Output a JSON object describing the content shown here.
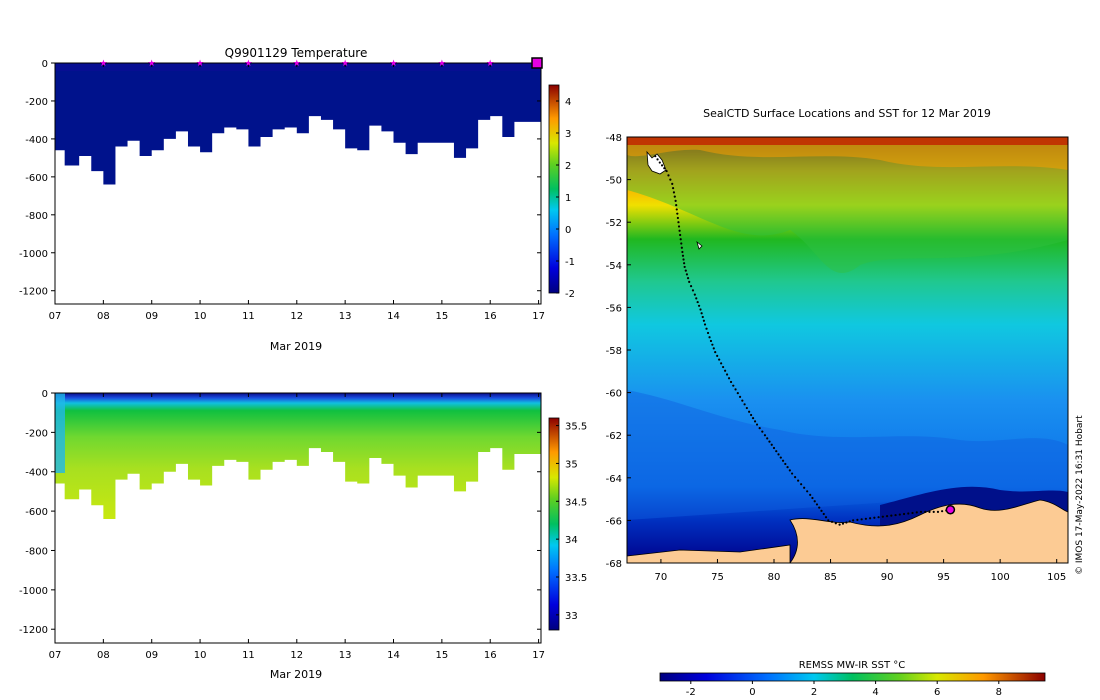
{
  "chart_data": [
    {
      "type": "heatmap",
      "title": "Q9901129  Temperature",
      "xlabel": "Mar 2019",
      "ylabel": "",
      "x_ticks": [
        "07",
        "08",
        "09",
        "10",
        "11",
        "12",
        "13",
        "14",
        "15",
        "16",
        "17"
      ],
      "xlim": [
        7,
        17.05
      ],
      "y_ticks": [
        0,
        -200,
        -400,
        -600,
        -800,
        -1000,
        -1200
      ],
      "ylim": [
        -1270,
        0
      ],
      "colorbar": {
        "ticks": [
          4,
          3,
          2,
          1,
          0,
          -1,
          -2
        ],
        "range": [
          -2,
          4.5
        ]
      },
      "surface_markers_days": [
        8,
        9,
        10,
        11,
        12,
        13,
        14,
        15,
        16
      ],
      "profile_depth_limits": [
        [
          7.0,
          -370
        ],
        [
          7.2,
          -460
        ],
        [
          7.5,
          -540
        ],
        [
          7.75,
          -490
        ],
        [
          8.0,
          -570
        ],
        [
          8.25,
          -640
        ],
        [
          8.5,
          -440
        ],
        [
          8.75,
          -410
        ],
        [
          9.0,
          -490
        ],
        [
          9.25,
          -460
        ],
        [
          9.5,
          -400
        ],
        [
          9.75,
          -360
        ],
        [
          10.0,
          -440
        ],
        [
          10.25,
          -470
        ],
        [
          10.5,
          -370
        ],
        [
          10.75,
          -340
        ],
        [
          11.0,
          -350
        ],
        [
          11.25,
          -440
        ],
        [
          11.5,
          -390
        ],
        [
          11.75,
          -350
        ],
        [
          12.0,
          -340
        ],
        [
          12.25,
          -370
        ],
        [
          12.5,
          -280
        ],
        [
          12.75,
          -300
        ],
        [
          13.0,
          -350
        ],
        [
          13.25,
          -450
        ],
        [
          13.5,
          -460
        ],
        [
          13.75,
          -330
        ],
        [
          14.0,
          -360
        ],
        [
          14.25,
          -420
        ],
        [
          14.5,
          -480
        ],
        [
          14.75,
          -420
        ],
        [
          15.0,
          -420
        ],
        [
          15.25,
          -420
        ],
        [
          15.5,
          -500
        ],
        [
          15.75,
          -450
        ],
        [
          16.0,
          -300
        ],
        [
          16.25,
          -280
        ],
        [
          16.5,
          -390
        ],
        [
          16.75,
          -310
        ],
        [
          17.05,
          -310
        ]
      ]
    },
    {
      "type": "heatmap",
      "title": "",
      "xlabel": "Mar 2019",
      "ylabel": "",
      "x_ticks": [
        "07",
        "08",
        "09",
        "10",
        "11",
        "12",
        "13",
        "14",
        "15",
        "16",
        "17"
      ],
      "xlim": [
        7,
        17.05
      ],
      "y_ticks": [
        0,
        -200,
        -400,
        -600,
        -800,
        -1000,
        -1200
      ],
      "ylim": [
        -1270,
        0
      ],
      "colorbar": {
        "ticks": [
          35.5,
          35,
          34.5,
          34,
          33.5,
          33
        ],
        "range": [
          32.8,
          35.6
        ]
      },
      "profile_depth_limits": [
        [
          7.0,
          -370
        ],
        [
          7.2,
          -460
        ],
        [
          7.5,
          -540
        ],
        [
          7.75,
          -490
        ],
        [
          8.0,
          -570
        ],
        [
          8.25,
          -640
        ],
        [
          8.5,
          -440
        ],
        [
          8.75,
          -410
        ],
        [
          9.0,
          -490
        ],
        [
          9.25,
          -460
        ],
        [
          9.5,
          -400
        ],
        [
          9.75,
          -360
        ],
        [
          10.0,
          -440
        ],
        [
          10.25,
          -470
        ],
        [
          10.5,
          -370
        ],
        [
          10.75,
          -340
        ],
        [
          11.0,
          -350
        ],
        [
          11.25,
          -440
        ],
        [
          11.5,
          -390
        ],
        [
          11.75,
          -350
        ],
        [
          12.0,
          -340
        ],
        [
          12.25,
          -370
        ],
        [
          12.5,
          -280
        ],
        [
          12.75,
          -300
        ],
        [
          13.0,
          -350
        ],
        [
          13.25,
          -450
        ],
        [
          13.5,
          -460
        ],
        [
          13.75,
          -330
        ],
        [
          14.0,
          -360
        ],
        [
          14.25,
          -420
        ],
        [
          14.5,
          -480
        ],
        [
          14.75,
          -420
        ],
        [
          15.0,
          -420
        ],
        [
          15.25,
          -420
        ],
        [
          15.5,
          -500
        ],
        [
          15.75,
          -450
        ],
        [
          16.0,
          -300
        ],
        [
          16.25,
          -280
        ],
        [
          16.5,
          -390
        ],
        [
          16.75,
          -310
        ],
        [
          17.05,
          -310
        ]
      ]
    },
    {
      "type": "heatmap",
      "title": "SealCTD Surface Locations and SST for 12 Mar 2019",
      "xlabel": "",
      "ylabel": "",
      "x_ticks": [
        70,
        75,
        80,
        85,
        90,
        95,
        100,
        105
      ],
      "xlim": [
        67,
        106
      ],
      "y_ticks": [
        -48,
        -50,
        -52,
        -54,
        -56,
        -58,
        -60,
        -62,
        -64,
        -66,
        -68
      ],
      "ylim": [
        -68,
        -48
      ],
      "colorbar": {
        "label": "REMSS MW-IR SST °C",
        "ticks": [
          -2,
          0,
          2,
          4,
          6,
          8
        ],
        "range": [
          -3,
          9.5
        ]
      },
      "credit": "© IMOS 17-May-2022 16:31 Hobart",
      "track": [
        [
          69.5,
          -48.9
        ],
        [
          69.9,
          -49.2
        ],
        [
          70.5,
          -49.6
        ],
        [
          71.0,
          -50.2
        ],
        [
          71.3,
          -51.0
        ],
        [
          71.5,
          -51.8
        ],
        [
          71.7,
          -52.6
        ],
        [
          71.9,
          -53.4
        ],
        [
          72.1,
          -54.1
        ],
        [
          72.5,
          -54.8
        ],
        [
          73.0,
          -55.4
        ],
        [
          73.5,
          -56.1
        ],
        [
          73.9,
          -56.8
        ],
        [
          74.3,
          -57.4
        ],
        [
          74.8,
          -58.1
        ],
        [
          75.5,
          -58.8
        ],
        [
          76.2,
          -59.5
        ],
        [
          77.0,
          -60.2
        ],
        [
          77.8,
          -60.9
        ],
        [
          78.5,
          -61.5
        ],
        [
          79.2,
          -62.0
        ],
        [
          80.0,
          -62.6
        ],
        [
          80.8,
          -63.2
        ],
        [
          81.6,
          -63.8
        ],
        [
          82.4,
          -64.3
        ],
        [
          83.2,
          -64.8
        ],
        [
          84.0,
          -65.4
        ],
        [
          84.8,
          -66.0
        ],
        [
          85.8,
          -66.2
        ],
        [
          87.0,
          -66.0
        ],
        [
          88.5,
          -65.9
        ],
        [
          90.0,
          -65.8
        ],
        [
          91.5,
          -65.7
        ],
        [
          93.0,
          -65.6
        ],
        [
          94.5,
          -65.6
        ],
        [
          95.6,
          -65.5
        ]
      ],
      "current_position": [
        95.6,
        -65.5
      ]
    }
  ]
}
